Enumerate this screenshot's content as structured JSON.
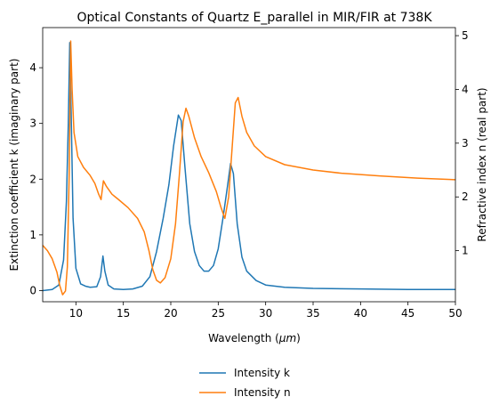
{
  "chart_data": {
    "type": "line",
    "title": "Optical Constants of Quartz E_parallel in MIR/FIR at 738K",
    "xlabel": "Wavelength ($\\mu m$)",
    "xlabel_main": "Wavelength (",
    "xlabel_mu": "μm",
    "xlabel_close": ")",
    "ylabel_left": "Extinction coefficient k (imaginary part)",
    "ylabel_right": "Refractive index n (real part)",
    "xlim": [
      6.5,
      50
    ],
    "ylim_left": [
      -0.2,
      4.72
    ],
    "ylim_right": [
      0.05,
      5.15
    ],
    "xticks": [
      10,
      15,
      20,
      25,
      30,
      35,
      40,
      45,
      50
    ],
    "yticks_left": [
      0,
      1,
      2,
      3,
      4
    ],
    "yticks_right": [
      1,
      2,
      3,
      4,
      5
    ],
    "grid": false,
    "legend_placement": "below chart, centered",
    "series": [
      {
        "name": "Intensity k",
        "axis": "left",
        "color": "#1f77b4",
        "points": [
          [
            6.5,
            0.0
          ],
          [
            7.5,
            0.02
          ],
          [
            8.2,
            0.1
          ],
          [
            8.7,
            0.55
          ],
          [
            9.0,
            1.6
          ],
          [
            9.2,
            3.0
          ],
          [
            9.35,
            4.45
          ],
          [
            9.5,
            3.2
          ],
          [
            9.7,
            1.3
          ],
          [
            10.0,
            0.4
          ],
          [
            10.5,
            0.12
          ],
          [
            11.0,
            0.08
          ],
          [
            11.5,
            0.06
          ],
          [
            12.2,
            0.07
          ],
          [
            12.6,
            0.25
          ],
          [
            12.85,
            0.62
          ],
          [
            13.05,
            0.35
          ],
          [
            13.4,
            0.1
          ],
          [
            14.0,
            0.03
          ],
          [
            15.0,
            0.02
          ],
          [
            16.0,
            0.03
          ],
          [
            17.0,
            0.08
          ],
          [
            17.8,
            0.25
          ],
          [
            18.5,
            0.7
          ],
          [
            19.2,
            1.3
          ],
          [
            19.8,
            1.9
          ],
          [
            20.3,
            2.6
          ],
          [
            20.8,
            3.15
          ],
          [
            21.1,
            3.05
          ],
          [
            21.5,
            2.2
          ],
          [
            22.0,
            1.2
          ],
          [
            22.5,
            0.7
          ],
          [
            23.0,
            0.45
          ],
          [
            23.5,
            0.35
          ],
          [
            24.0,
            0.35
          ],
          [
            24.5,
            0.45
          ],
          [
            25.0,
            0.75
          ],
          [
            25.5,
            1.3
          ],
          [
            26.0,
            1.9
          ],
          [
            26.3,
            2.28
          ],
          [
            26.6,
            2.1
          ],
          [
            27.0,
            1.2
          ],
          [
            27.5,
            0.6
          ],
          [
            28.0,
            0.35
          ],
          [
            29.0,
            0.18
          ],
          [
            30.0,
            0.1
          ],
          [
            32.0,
            0.06
          ],
          [
            35.0,
            0.04
          ],
          [
            40.0,
            0.03
          ],
          [
            45.0,
            0.02
          ],
          [
            50.0,
            0.02
          ]
        ]
      },
      {
        "name": "Intensity n",
        "axis": "right",
        "color": "#ff7f0e",
        "points": [
          [
            6.5,
            1.1
          ],
          [
            7.0,
            1.0
          ],
          [
            7.5,
            0.85
          ],
          [
            8.0,
            0.6
          ],
          [
            8.3,
            0.35
          ],
          [
            8.6,
            0.18
          ],
          [
            8.9,
            0.25
          ],
          [
            9.1,
            0.7
          ],
          [
            9.3,
            2.5
          ],
          [
            9.45,
            4.9
          ],
          [
            9.6,
            4.0
          ],
          [
            9.8,
            3.2
          ],
          [
            10.2,
            2.75
          ],
          [
            10.8,
            2.55
          ],
          [
            11.5,
            2.4
          ],
          [
            12.0,
            2.25
          ],
          [
            12.4,
            2.05
          ],
          [
            12.65,
            1.95
          ],
          [
            12.9,
            2.3
          ],
          [
            13.2,
            2.2
          ],
          [
            13.8,
            2.05
          ],
          [
            14.5,
            1.95
          ],
          [
            15.5,
            1.8
          ],
          [
            16.5,
            1.6
          ],
          [
            17.2,
            1.35
          ],
          [
            17.7,
            1.0
          ],
          [
            18.1,
            0.65
          ],
          [
            18.5,
            0.45
          ],
          [
            18.9,
            0.4
          ],
          [
            19.4,
            0.5
          ],
          [
            20.0,
            0.85
          ],
          [
            20.5,
            1.5
          ],
          [
            20.9,
            2.4
          ],
          [
            21.3,
            3.4
          ],
          [
            21.6,
            3.65
          ],
          [
            21.9,
            3.5
          ],
          [
            22.5,
            3.1
          ],
          [
            23.2,
            2.75
          ],
          [
            24.0,
            2.45
          ],
          [
            24.8,
            2.1
          ],
          [
            25.3,
            1.8
          ],
          [
            25.7,
            1.6
          ],
          [
            26.1,
            2.0
          ],
          [
            26.5,
            3.0
          ],
          [
            26.8,
            3.75
          ],
          [
            27.1,
            3.85
          ],
          [
            27.5,
            3.5
          ],
          [
            28.0,
            3.2
          ],
          [
            28.8,
            2.95
          ],
          [
            30.0,
            2.75
          ],
          [
            32.0,
            2.6
          ],
          [
            35.0,
            2.5
          ],
          [
            38.0,
            2.44
          ],
          [
            42.0,
            2.39
          ],
          [
            46.0,
            2.35
          ],
          [
            50.0,
            2.32
          ]
        ]
      }
    ]
  }
}
